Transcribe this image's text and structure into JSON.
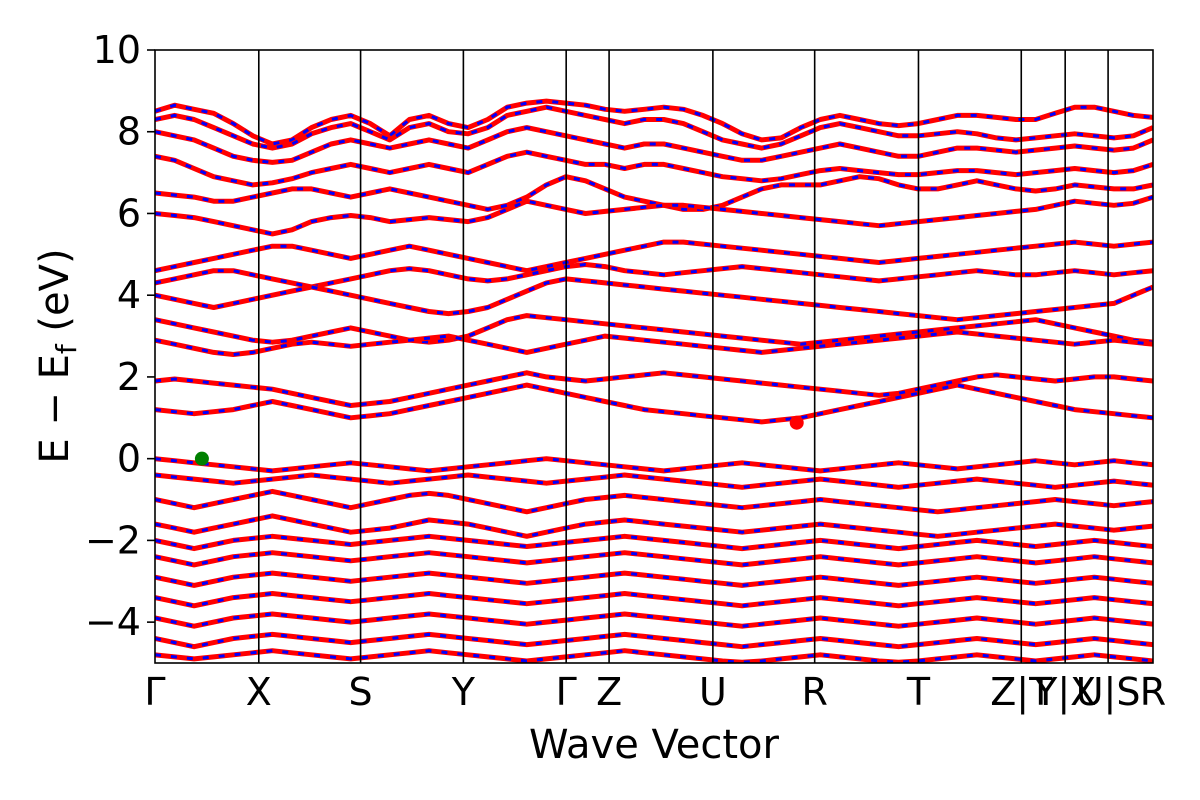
{
  "chart_data": {
    "type": "line",
    "xlabel": "Wave Vector",
    "ylabel_parts": {
      "main": "E − E",
      "sub": "f",
      "unit": " (eV)"
    },
    "ylim": [
      -5,
      10
    ],
    "yticks": [
      -4,
      -2,
      0,
      2,
      4,
      6,
      8,
      10
    ],
    "ytick_labels": [
      "−4",
      "−2",
      "0",
      "2",
      "4",
      "6",
      "8",
      "10"
    ],
    "kpoints": [
      {
        "label": "Γ",
        "x": 0.0
      },
      {
        "label": "X",
        "x": 0.104
      },
      {
        "label": "S",
        "x": 0.206
      },
      {
        "label": "Y",
        "x": 0.309
      },
      {
        "label": "Γ",
        "x": 0.412
      },
      {
        "label": "Z",
        "x": 0.455
      },
      {
        "label": "U",
        "x": 0.559
      },
      {
        "label": "R",
        "x": 0.661
      },
      {
        "label": "T",
        "x": 0.765
      },
      {
        "label": "Z|T",
        "x": 0.868
      },
      {
        "label": "Y|X",
        "x": 0.912
      },
      {
        "label": "U|S",
        "x": 0.955
      },
      {
        "label": "R",
        "x": 1.0
      }
    ],
    "xlim": [
      0,
      1
    ],
    "series": [
      {
        "color": "#ff0000",
        "style": "solid"
      },
      {
        "color": "#0000ff",
        "style": "dashed"
      }
    ],
    "markers": [
      {
        "x": 0.047,
        "y": 0.0,
        "color": "#008000"
      },
      {
        "x": 0.643,
        "y": 0.88,
        "color": "#ff0000"
      }
    ],
    "bands": [
      [
        8.5,
        8.65,
        8.55,
        8.45,
        8.2,
        7.9,
        7.7,
        7.8,
        8.1,
        8.3,
        8.4,
        8.2,
        7.9,
        8.3,
        8.4,
        8.2,
        8.1,
        8.3,
        8.6,
        8.7,
        8.75,
        8.7,
        8.65,
        8.55,
        8.5,
        8.55,
        8.6,
        8.55,
        8.4,
        8.2,
        7.95,
        7.8,
        7.85,
        8.1,
        8.3,
        8.4,
        8.3,
        8.2,
        8.15,
        8.2,
        8.3,
        8.4,
        8.4,
        8.35,
        8.3,
        8.3,
        8.45,
        8.6,
        8.6,
        8.5,
        8.4,
        8.35
      ],
      [
        8.3,
        8.4,
        8.3,
        8.1,
        7.9,
        7.7,
        7.6,
        7.7,
        7.95,
        8.1,
        8.2,
        8.0,
        7.8,
        8.1,
        8.2,
        8.0,
        7.95,
        8.1,
        8.4,
        8.5,
        8.6,
        8.5,
        8.4,
        8.3,
        8.2,
        8.3,
        8.3,
        8.2,
        8.0,
        7.8,
        7.7,
        7.6,
        7.7,
        7.9,
        8.1,
        8.2,
        8.1,
        8.0,
        7.9,
        7.9,
        7.95,
        8.0,
        7.95,
        7.85,
        7.8,
        7.85,
        7.9,
        7.95,
        7.9,
        7.85,
        7.9,
        8.1
      ],
      [
        8.0,
        7.9,
        7.8,
        7.6,
        7.4,
        7.3,
        7.25,
        7.3,
        7.5,
        7.7,
        7.8,
        7.7,
        7.6,
        7.7,
        7.8,
        7.7,
        7.6,
        7.8,
        8.0,
        8.1,
        8.0,
        7.9,
        7.8,
        7.7,
        7.6,
        7.7,
        7.7,
        7.6,
        7.5,
        7.4,
        7.3,
        7.3,
        7.4,
        7.5,
        7.6,
        7.7,
        7.6,
        7.5,
        7.4,
        7.4,
        7.5,
        7.6,
        7.6,
        7.55,
        7.5,
        7.55,
        7.6,
        7.65,
        7.6,
        7.55,
        7.6,
        7.8
      ],
      [
        7.4,
        7.3,
        7.1,
        6.9,
        6.8,
        6.7,
        6.75,
        6.85,
        7.0,
        7.1,
        7.2,
        7.1,
        7.0,
        7.1,
        7.2,
        7.1,
        7.0,
        7.2,
        7.4,
        7.5,
        7.4,
        7.3,
        7.2,
        7.2,
        7.1,
        7.2,
        7.2,
        7.1,
        7.0,
        6.9,
        6.85,
        6.8,
        6.85,
        6.95,
        7.05,
        7.1,
        7.05,
        7.0,
        6.95,
        6.95,
        7.0,
        7.05,
        7.05,
        7.0,
        6.95,
        7.0,
        7.05,
        7.1,
        7.05,
        7.0,
        7.05,
        7.2
      ],
      [
        6.5,
        6.45,
        6.4,
        6.3,
        6.3,
        6.4,
        6.5,
        6.6,
        6.6,
        6.5,
        6.4,
        6.5,
        6.6,
        6.5,
        6.4,
        6.3,
        6.2,
        6.1,
        6.2,
        6.4,
        6.7,
        6.9,
        6.8,
        6.6,
        6.4,
        6.3,
        6.2,
        6.1,
        6.1,
        6.2,
        6.4,
        6.6,
        6.7,
        6.7,
        6.7,
        6.8,
        6.9,
        6.85,
        6.7,
        6.6,
        6.6,
        6.7,
        6.8,
        6.7,
        6.6,
        6.55,
        6.6,
        6.7,
        6.65,
        6.6,
        6.6,
        6.7
      ],
      [
        6.0,
        5.95,
        5.9,
        5.8,
        5.7,
        5.6,
        5.5,
        5.6,
        5.8,
        5.9,
        5.95,
        5.9,
        5.8,
        5.85,
        5.9,
        5.85,
        5.8,
        5.9,
        6.1,
        6.3,
        6.2,
        6.1,
        6.0,
        6.05,
        6.1,
        6.15,
        6.2,
        6.2,
        6.15,
        6.1,
        6.05,
        6.0,
        5.95,
        5.9,
        5.85,
        5.8,
        5.75,
        5.7,
        5.75,
        5.8,
        5.85,
        5.9,
        5.95,
        6.0,
        6.05,
        6.1,
        6.2,
        6.3,
        6.25,
        6.2,
        6.25,
        6.4
      ],
      [
        4.6,
        4.7,
        4.8,
        4.9,
        5.0,
        5.1,
        5.2,
        5.2,
        5.1,
        5.0,
        4.9,
        5.0,
        5.1,
        5.2,
        5.1,
        5.0,
        4.9,
        4.8,
        4.7,
        4.6,
        4.7,
        4.8,
        4.9,
        5.0,
        5.1,
        5.2,
        5.3,
        5.3,
        5.25,
        5.2,
        5.15,
        5.1,
        5.05,
        5.0,
        4.95,
        4.9,
        4.85,
        4.8,
        4.85,
        4.9,
        4.95,
        5.0,
        5.05,
        5.1,
        5.15,
        5.2,
        5.25,
        5.3,
        5.25,
        5.2,
        5.25,
        5.3
      ],
      [
        4.3,
        4.4,
        4.5,
        4.6,
        4.6,
        4.5,
        4.4,
        4.3,
        4.2,
        4.3,
        4.4,
        4.5,
        4.6,
        4.65,
        4.6,
        4.5,
        4.4,
        4.35,
        4.4,
        4.5,
        4.6,
        4.7,
        4.75,
        4.7,
        4.6,
        4.55,
        4.5,
        4.55,
        4.6,
        4.65,
        4.7,
        4.65,
        4.6,
        4.55,
        4.5,
        4.45,
        4.4,
        4.35,
        4.4,
        4.45,
        4.5,
        4.55,
        4.6,
        4.55,
        4.5,
        4.5,
        4.55,
        4.6,
        4.55,
        4.5,
        4.55,
        4.6
      ],
      [
        4.0,
        3.9,
        3.8,
        3.7,
        3.8,
        3.9,
        4.0,
        4.1,
        4.2,
        4.1,
        4.0,
        3.9,
        3.8,
        3.7,
        3.6,
        3.55,
        3.6,
        3.7,
        3.9,
        4.1,
        4.3,
        4.4,
        4.35,
        4.3,
        4.25,
        4.2,
        4.15,
        4.1,
        4.05,
        4.0,
        3.95,
        3.9,
        3.85,
        3.8,
        3.75,
        3.7,
        3.65,
        3.6,
        3.55,
        3.5,
        3.45,
        3.4,
        3.45,
        3.5,
        3.55,
        3.6,
        3.65,
        3.7,
        3.75,
        3.8,
        4.0,
        4.2
      ],
      [
        3.4,
        3.3,
        3.2,
        3.1,
        3.0,
        2.9,
        2.85,
        2.9,
        3.0,
        3.1,
        3.2,
        3.1,
        3.0,
        2.9,
        2.85,
        2.9,
        3.0,
        3.2,
        3.4,
        3.5,
        3.45,
        3.4,
        3.35,
        3.3,
        3.25,
        3.2,
        3.15,
        3.1,
        3.05,
        3.0,
        2.95,
        2.9,
        2.85,
        2.8,
        2.85,
        2.9,
        2.95,
        3.0,
        3.05,
        3.1,
        3.15,
        3.2,
        3.25,
        3.3,
        3.35,
        3.4,
        3.3,
        3.2,
        3.1,
        3.0,
        2.9,
        2.85
      ],
      [
        2.9,
        2.8,
        2.7,
        2.6,
        2.55,
        2.6,
        2.7,
        2.8,
        2.85,
        2.8,
        2.75,
        2.8,
        2.85,
        2.9,
        2.95,
        3.0,
        2.9,
        2.8,
        2.7,
        2.6,
        2.7,
        2.8,
        2.9,
        3.0,
        2.95,
        2.9,
        2.85,
        2.8,
        2.75,
        2.7,
        2.65,
        2.6,
        2.65,
        2.7,
        2.75,
        2.8,
        2.85,
        2.9,
        2.95,
        3.0,
        3.05,
        3.1,
        3.05,
        3.0,
        2.95,
        2.9,
        2.85,
        2.8,
        2.85,
        2.9,
        2.85,
        2.8
      ],
      [
        1.9,
        1.95,
        1.9,
        1.85,
        1.8,
        1.75,
        1.7,
        1.6,
        1.5,
        1.4,
        1.3,
        1.35,
        1.4,
        1.5,
        1.6,
        1.7,
        1.8,
        1.9,
        2.0,
        2.1,
        2.0,
        1.95,
        1.9,
        1.95,
        2.0,
        2.05,
        2.1,
        2.05,
        2.0,
        1.95,
        1.9,
        1.85,
        1.8,
        1.75,
        1.7,
        1.65,
        1.6,
        1.55,
        1.6,
        1.7,
        1.8,
        1.9,
        2.0,
        2.05,
        2.0,
        1.95,
        1.9,
        1.95,
        2.0,
        2.0,
        1.95,
        1.9
      ],
      [
        1.2,
        1.15,
        1.1,
        1.15,
        1.2,
        1.3,
        1.4,
        1.3,
        1.2,
        1.1,
        1.0,
        1.05,
        1.1,
        1.2,
        1.3,
        1.4,
        1.5,
        1.6,
        1.7,
        1.8,
        1.7,
        1.6,
        1.5,
        1.4,
        1.3,
        1.2,
        1.15,
        1.1,
        1.05,
        1.0,
        0.95,
        0.9,
        0.95,
        1.0,
        1.1,
        1.2,
        1.3,
        1.4,
        1.5,
        1.6,
        1.7,
        1.8,
        1.7,
        1.6,
        1.5,
        1.4,
        1.3,
        1.2,
        1.15,
        1.1,
        1.05,
        1.0
      ],
      [
        0.0,
        -0.05,
        -0.1,
        -0.15,
        -0.2,
        -0.25,
        -0.3,
        -0.25,
        -0.2,
        -0.15,
        -0.1,
        -0.15,
        -0.2,
        -0.25,
        -0.3,
        -0.25,
        -0.2,
        -0.15,
        -0.1,
        -0.05,
        0.0,
        -0.05,
        -0.1,
        -0.15,
        -0.2,
        -0.25,
        -0.3,
        -0.25,
        -0.2,
        -0.15,
        -0.1,
        -0.15,
        -0.2,
        -0.25,
        -0.3,
        -0.25,
        -0.2,
        -0.15,
        -0.1,
        -0.15,
        -0.2,
        -0.25,
        -0.2,
        -0.15,
        -0.1,
        -0.05,
        -0.1,
        -0.15,
        -0.1,
        -0.05,
        -0.1,
        -0.15
      ],
      [
        -0.4,
        -0.45,
        -0.5,
        -0.55,
        -0.6,
        -0.55,
        -0.5,
        -0.45,
        -0.4,
        -0.45,
        -0.5,
        -0.55,
        -0.6,
        -0.55,
        -0.5,
        -0.45,
        -0.4,
        -0.45,
        -0.5,
        -0.55,
        -0.6,
        -0.55,
        -0.5,
        -0.45,
        -0.4,
        -0.45,
        -0.5,
        -0.55,
        -0.6,
        -0.65,
        -0.7,
        -0.65,
        -0.6,
        -0.55,
        -0.5,
        -0.55,
        -0.6,
        -0.65,
        -0.7,
        -0.65,
        -0.6,
        -0.55,
        -0.5,
        -0.55,
        -0.6,
        -0.65,
        -0.7,
        -0.65,
        -0.6,
        -0.55,
        -0.6,
        -0.65
      ],
      [
        -1.0,
        -1.1,
        -1.2,
        -1.1,
        -1.0,
        -0.9,
        -0.8,
        -0.9,
        -1.0,
        -1.1,
        -1.2,
        -1.1,
        -1.0,
        -0.9,
        -0.85,
        -0.9,
        -1.0,
        -1.1,
        -1.2,
        -1.3,
        -1.2,
        -1.1,
        -1.0,
        -0.95,
        -0.9,
        -0.95,
        -1.0,
        -1.05,
        -1.1,
        -1.15,
        -1.2,
        -1.15,
        -1.1,
        -1.05,
        -1.0,
        -1.05,
        -1.1,
        -1.15,
        -1.2,
        -1.25,
        -1.3,
        -1.25,
        -1.2,
        -1.15,
        -1.1,
        -1.05,
        -1.0,
        -1.05,
        -1.1,
        -1.15,
        -1.1,
        -1.05
      ],
      [
        -1.6,
        -1.7,
        -1.8,
        -1.7,
        -1.6,
        -1.5,
        -1.4,
        -1.5,
        -1.6,
        -1.7,
        -1.8,
        -1.75,
        -1.7,
        -1.6,
        -1.5,
        -1.55,
        -1.6,
        -1.7,
        -1.8,
        -1.9,
        -1.8,
        -1.7,
        -1.6,
        -1.55,
        -1.5,
        -1.55,
        -1.6,
        -1.65,
        -1.7,
        -1.75,
        -1.8,
        -1.75,
        -1.7,
        -1.65,
        -1.6,
        -1.65,
        -1.7,
        -1.75,
        -1.8,
        -1.85,
        -1.9,
        -1.85,
        -1.8,
        -1.75,
        -1.7,
        -1.65,
        -1.6,
        -1.65,
        -1.7,
        -1.75,
        -1.7,
        -1.65
      ],
      [
        -2.0,
        -2.1,
        -2.2,
        -2.1,
        -2.0,
        -1.95,
        -1.9,
        -1.95,
        -2.0,
        -2.05,
        -2.1,
        -2.05,
        -2.0,
        -1.95,
        -1.9,
        -1.95,
        -2.0,
        -2.05,
        -2.1,
        -2.15,
        -2.1,
        -2.05,
        -2.0,
        -1.95,
        -1.9,
        -1.95,
        -2.0,
        -2.05,
        -2.1,
        -2.15,
        -2.2,
        -2.15,
        -2.1,
        -2.05,
        -2.0,
        -2.05,
        -2.1,
        -2.15,
        -2.2,
        -2.15,
        -2.1,
        -2.05,
        -2.0,
        -2.05,
        -2.1,
        -2.15,
        -2.1,
        -2.05,
        -2.0,
        -2.05,
        -2.1,
        -2.15
      ],
      [
        -2.4,
        -2.5,
        -2.6,
        -2.5,
        -2.4,
        -2.35,
        -2.3,
        -2.35,
        -2.4,
        -2.45,
        -2.5,
        -2.45,
        -2.4,
        -2.35,
        -2.3,
        -2.35,
        -2.4,
        -2.45,
        -2.5,
        -2.55,
        -2.5,
        -2.45,
        -2.4,
        -2.35,
        -2.3,
        -2.35,
        -2.4,
        -2.45,
        -2.5,
        -2.55,
        -2.6,
        -2.55,
        -2.5,
        -2.45,
        -2.4,
        -2.45,
        -2.5,
        -2.55,
        -2.6,
        -2.55,
        -2.5,
        -2.45,
        -2.4,
        -2.45,
        -2.5,
        -2.55,
        -2.5,
        -2.45,
        -2.4,
        -2.45,
        -2.5,
        -2.55
      ],
      [
        -2.9,
        -3.0,
        -3.1,
        -3.0,
        -2.9,
        -2.85,
        -2.8,
        -2.85,
        -2.9,
        -2.95,
        -3.0,
        -2.95,
        -2.9,
        -2.85,
        -2.8,
        -2.85,
        -2.9,
        -2.95,
        -3.0,
        -3.05,
        -3.0,
        -2.95,
        -2.9,
        -2.85,
        -2.8,
        -2.85,
        -2.9,
        -2.95,
        -3.0,
        -3.05,
        -3.1,
        -3.05,
        -3.0,
        -2.95,
        -2.9,
        -2.95,
        -3.0,
        -3.05,
        -3.1,
        -3.05,
        -3.0,
        -2.95,
        -2.9,
        -2.95,
        -3.0,
        -3.05,
        -3.0,
        -2.95,
        -2.9,
        -2.95,
        -3.0,
        -3.05
      ],
      [
        -3.4,
        -3.5,
        -3.6,
        -3.5,
        -3.4,
        -3.35,
        -3.3,
        -3.35,
        -3.4,
        -3.45,
        -3.5,
        -3.45,
        -3.4,
        -3.35,
        -3.3,
        -3.35,
        -3.4,
        -3.45,
        -3.5,
        -3.55,
        -3.5,
        -3.45,
        -3.4,
        -3.35,
        -3.3,
        -3.35,
        -3.4,
        -3.45,
        -3.5,
        -3.55,
        -3.6,
        -3.55,
        -3.5,
        -3.45,
        -3.4,
        -3.45,
        -3.5,
        -3.55,
        -3.6,
        -3.55,
        -3.5,
        -3.45,
        -3.4,
        -3.45,
        -3.5,
        -3.55,
        -3.5,
        -3.45,
        -3.4,
        -3.45,
        -3.5,
        -3.55
      ],
      [
        -3.9,
        -4.0,
        -4.1,
        -4.0,
        -3.9,
        -3.85,
        -3.8,
        -3.85,
        -3.9,
        -3.95,
        -4.0,
        -3.95,
        -3.9,
        -3.85,
        -3.8,
        -3.85,
        -3.9,
        -3.95,
        -4.0,
        -4.05,
        -4.0,
        -3.95,
        -3.9,
        -3.85,
        -3.8,
        -3.85,
        -3.9,
        -3.95,
        -4.0,
        -4.05,
        -4.1,
        -4.05,
        -4.0,
        -3.95,
        -3.9,
        -3.95,
        -4.0,
        -4.05,
        -4.1,
        -4.05,
        -4.0,
        -3.95,
        -3.9,
        -3.95,
        -4.0,
        -4.05,
        -4.0,
        -3.95,
        -3.9,
        -3.95,
        -4.0,
        -4.05
      ],
      [
        -4.4,
        -4.5,
        -4.6,
        -4.5,
        -4.4,
        -4.35,
        -4.3,
        -4.35,
        -4.4,
        -4.45,
        -4.5,
        -4.45,
        -4.4,
        -4.35,
        -4.3,
        -4.35,
        -4.4,
        -4.45,
        -4.5,
        -4.55,
        -4.5,
        -4.45,
        -4.4,
        -4.35,
        -4.3,
        -4.35,
        -4.4,
        -4.45,
        -4.5,
        -4.55,
        -4.6,
        -4.55,
        -4.5,
        -4.45,
        -4.4,
        -4.45,
        -4.5,
        -4.55,
        -4.6,
        -4.55,
        -4.5,
        -4.45,
        -4.4,
        -4.45,
        -4.5,
        -4.55,
        -4.5,
        -4.45,
        -4.4,
        -4.45,
        -4.5,
        -4.55
      ],
      [
        -4.8,
        -4.85,
        -4.9,
        -4.85,
        -4.8,
        -4.75,
        -4.7,
        -4.75,
        -4.8,
        -4.85,
        -4.9,
        -4.85,
        -4.8,
        -4.75,
        -4.7,
        -4.75,
        -4.8,
        -4.85,
        -4.9,
        -4.95,
        -4.9,
        -4.85,
        -4.8,
        -4.75,
        -4.7,
        -4.75,
        -4.8,
        -4.85,
        -4.9,
        -4.95,
        -4.98,
        -4.95,
        -4.9,
        -4.85,
        -4.8,
        -4.85,
        -4.9,
        -4.95,
        -4.98,
        -4.95,
        -4.9,
        -4.85,
        -4.8,
        -4.85,
        -4.9,
        -4.95,
        -4.9,
        -4.85,
        -4.8,
        -4.85,
        -4.9,
        -4.95
      ]
    ]
  }
}
